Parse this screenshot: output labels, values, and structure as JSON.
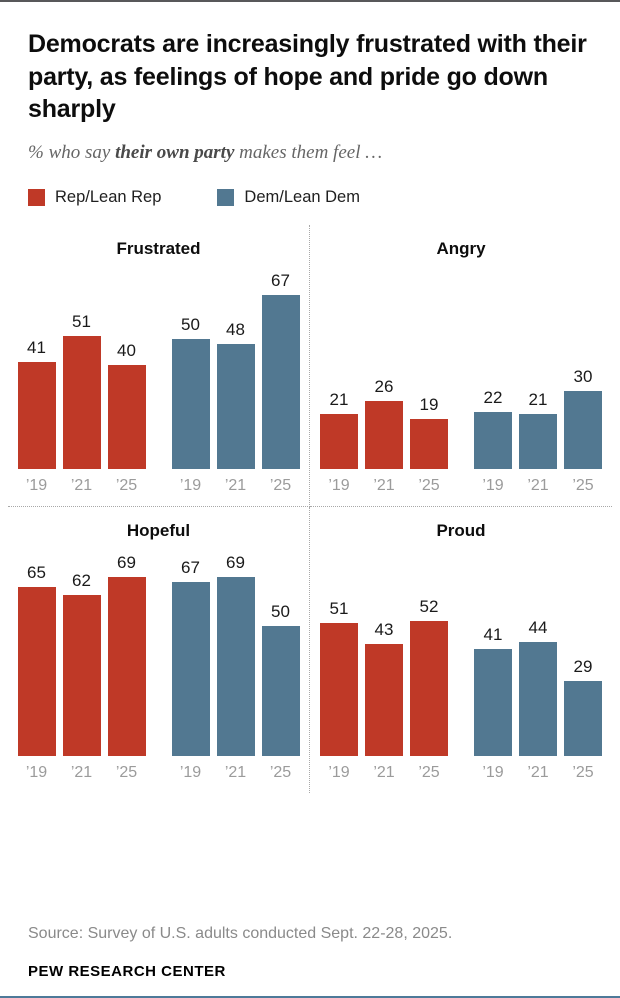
{
  "accent": {
    "rep": "#bf3927",
    "dem": "#527891",
    "top_line": "#58585a",
    "bottom_line": "#4e7a99"
  },
  "header": {
    "title": "Democrats are increasingly frustrated with their party, as feelings of hope and pride go down sharply",
    "subtitle_prefix": "% who say ",
    "subtitle_bold": "their own party",
    "subtitle_suffix": " makes them feel …"
  },
  "legend": [
    {
      "label": "Rep/Lean Rep",
      "color": "#bf3927"
    },
    {
      "label": "Dem/Lean Dem",
      "color": "#527891"
    }
  ],
  "chart_data": {
    "type": "bar",
    "categories": [
      "’19",
      "’21",
      "’25"
    ],
    "ylim": [
      0,
      75
    ],
    "grid": false,
    "legend_position": "top",
    "panels": [
      {
        "title": "Frustrated",
        "series": [
          {
            "name": "Rep/Lean Rep",
            "values": [
              41,
              51,
              40
            ]
          },
          {
            "name": "Dem/Lean Dem",
            "values": [
              50,
              48,
              67
            ]
          }
        ]
      },
      {
        "title": "Angry",
        "series": [
          {
            "name": "Rep/Lean Rep",
            "values": [
              21,
              26,
              19
            ]
          },
          {
            "name": "Dem/Lean Dem",
            "values": [
              22,
              21,
              30
            ]
          }
        ]
      },
      {
        "title": "Hopeful",
        "series": [
          {
            "name": "Rep/Lean Rep",
            "values": [
              65,
              62,
              69
            ]
          },
          {
            "name": "Dem/Lean Dem",
            "values": [
              67,
              69,
              50
            ]
          }
        ]
      },
      {
        "title": "Proud",
        "series": [
          {
            "name": "Rep/Lean Rep",
            "values": [
              51,
              43,
              52
            ]
          },
          {
            "name": "Dem/Lean Dem",
            "values": [
              41,
              44,
              29
            ]
          }
        ]
      }
    ]
  },
  "footer": {
    "source": "Source: Survey of U.S. adults conducted Sept. 22-28, 2025.",
    "brand": "PEW RESEARCH CENTER"
  }
}
